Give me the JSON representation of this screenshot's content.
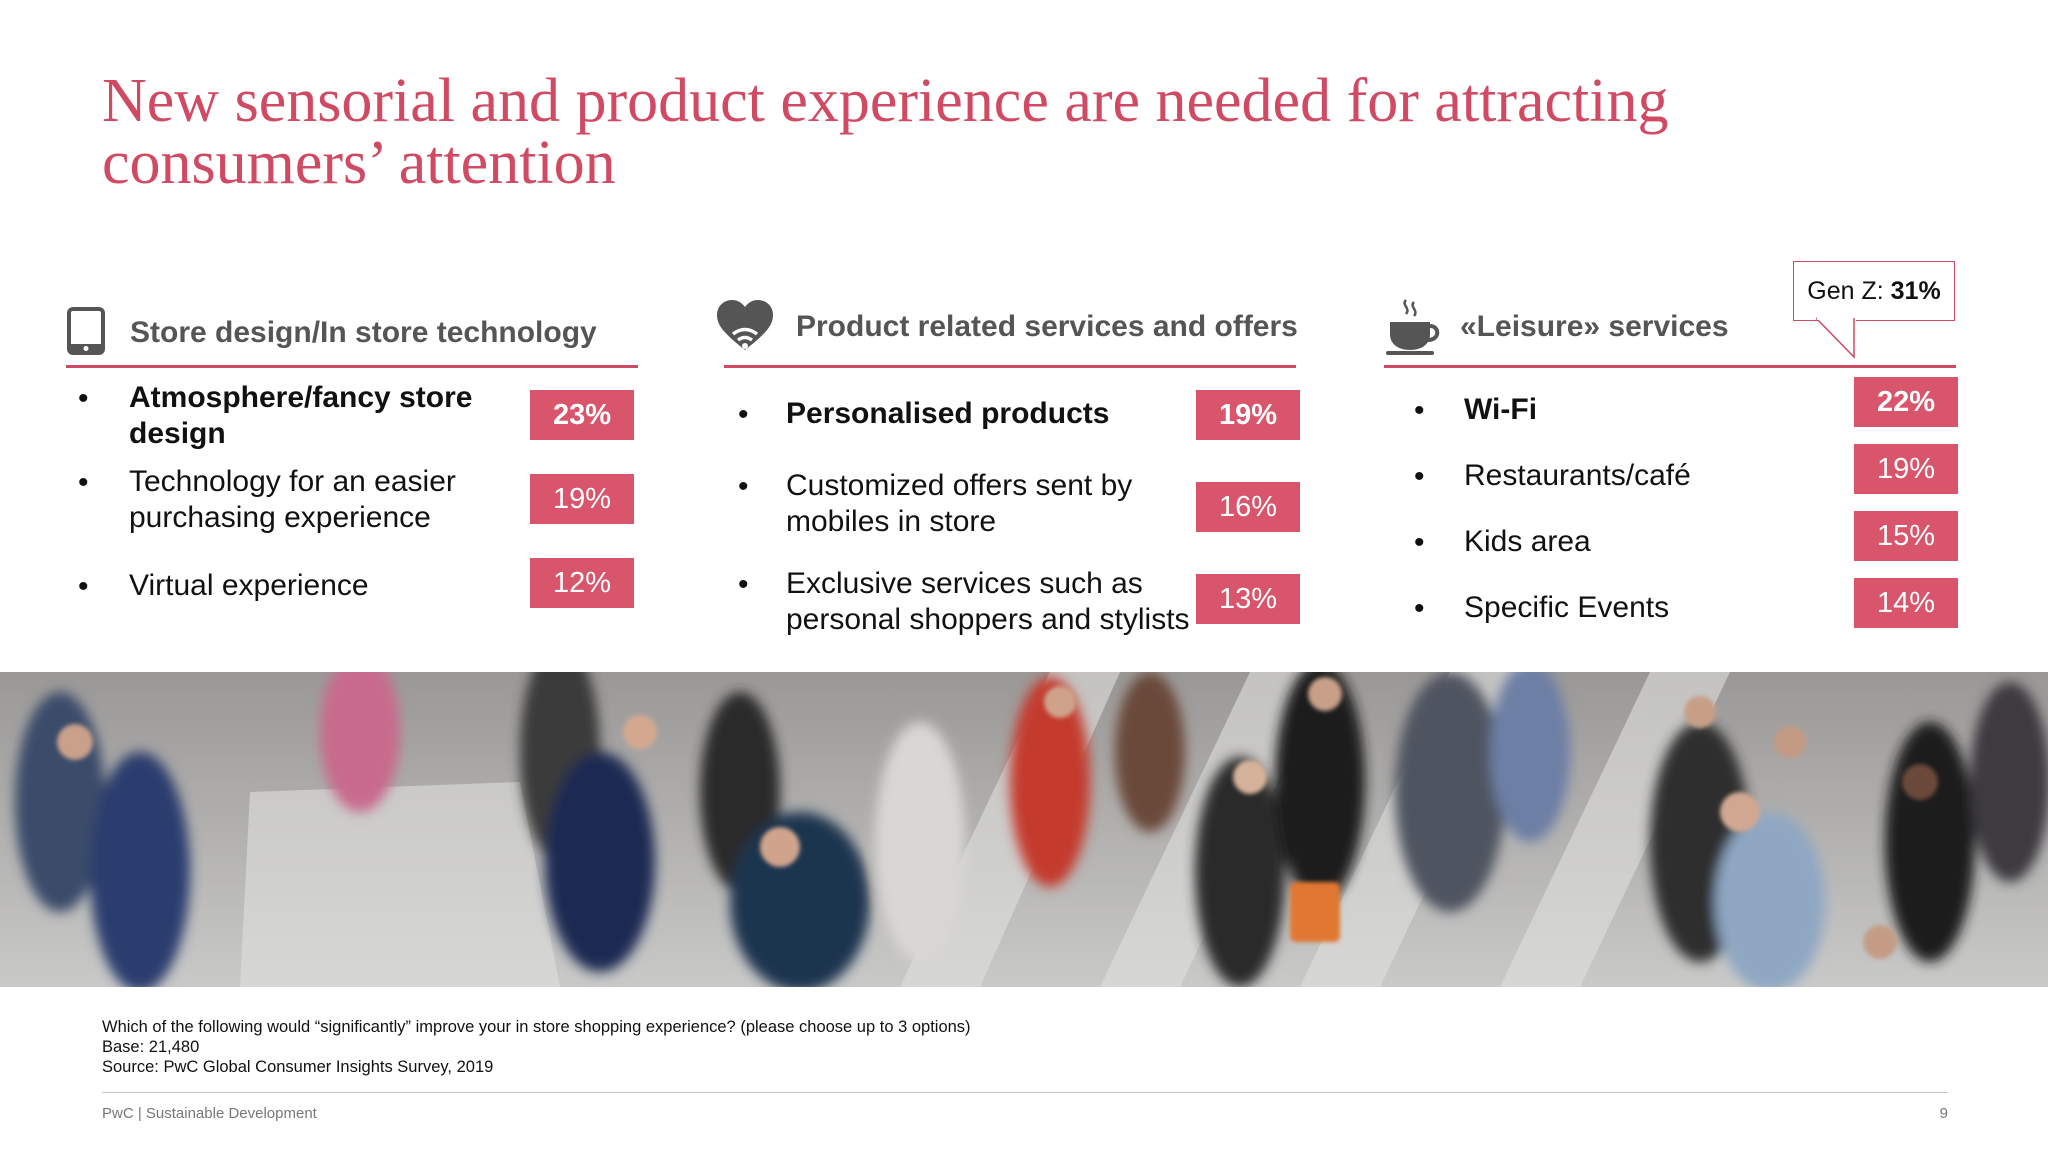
{
  "title": "New sensorial and product experience are needed for attracting consumers’ attention",
  "columns": [
    {
      "title": "Store design/In store technology",
      "icon": "tablet-icon",
      "items": [
        {
          "label": "Atmosphere/fancy store design",
          "value": "23%",
          "highlight": true
        },
        {
          "label": "Technology for an easier purchasing experience",
          "value": "19%",
          "highlight": false
        },
        {
          "label": "Virtual experience",
          "value": "12%",
          "highlight": false
        }
      ]
    },
    {
      "title": "Product related services and offers",
      "icon": "heart-wifi-icon",
      "items": [
        {
          "label": "Personalised products",
          "value": "19%",
          "highlight": true
        },
        {
          "label": "Customized offers sent by mobiles in store",
          "value": "16%",
          "highlight": false
        },
        {
          "label": "Exclusive services such as personal shoppers and stylists",
          "value": "13%",
          "highlight": false
        }
      ]
    },
    {
      "title": "«Leisure» services",
      "icon": "coffee-cup-icon",
      "items": [
        {
          "label": "Wi-Fi",
          "value": "22%",
          "highlight": true
        },
        {
          "label": "Restaurants/café",
          "value": "19%",
          "highlight": false
        },
        {
          "label": "Kids area",
          "value": "15%",
          "highlight": false
        },
        {
          "label": "Specific Events",
          "value": "14%",
          "highlight": false
        }
      ]
    }
  ],
  "callout": {
    "label": "Gen Z:",
    "value": "31%"
  },
  "photo": {
    "subject": "blurred crowd of shoppers walking through a mall"
  },
  "notes": {
    "question": "Which of the following would “significantly” improve your in store shopping experience? (please choose up to 3 options)",
    "base": "Base: 21,480",
    "source": "Source: PwC Global Consumer Insights Survey, 2019"
  },
  "footer": {
    "left": "PwC | Sustainable Development",
    "page": "9"
  },
  "colors": {
    "accent": "#d04a63",
    "badge": "#d9556c"
  }
}
